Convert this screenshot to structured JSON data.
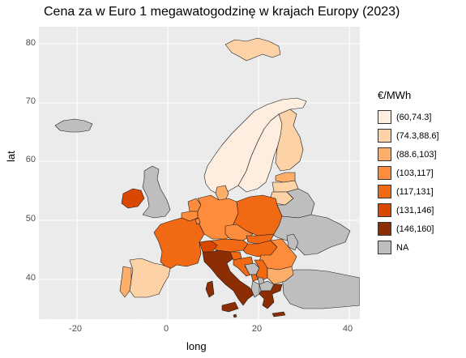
{
  "title": "Cena za w Euro 1 megawatogodzinę w krajach Europy (2023)",
  "xlabel": "long",
  "ylabel": "lat",
  "x_ticks": [
    "-20",
    "0",
    "20",
    "40"
  ],
  "y_ticks": [
    "80",
    "70",
    "60",
    "50",
    "40"
  ],
  "legend": {
    "title": "€/MWh",
    "items": [
      {
        "label": "(60,74.3]",
        "color": "#fdeee0"
      },
      {
        "label": "(74.3,88.6]",
        "color": "#fdd2a6"
      },
      {
        "label": "(88.6,103]",
        "color": "#fdae6b"
      },
      {
        "label": "(103,117]",
        "color": "#fd8d3c"
      },
      {
        "label": "(117,131]",
        "color": "#f16913"
      },
      {
        "label": "(131,146]",
        "color": "#d94801"
      },
      {
        "label": "(146,160]",
        "color": "#8c2d04"
      },
      {
        "label": "NA",
        "color": "#bebebe"
      }
    ]
  },
  "chart_data": {
    "type": "choropleth",
    "title": "Cena za w Euro 1 megawatogodzinę w krajach Europy (2023)",
    "xlabel": "long",
    "ylabel": "lat",
    "xlim": [
      -28,
      43
    ],
    "ylim": [
      33.5,
      83
    ],
    "legend_title": "€/MWh",
    "legend_position": "right",
    "grid": true,
    "countries": [
      {
        "name": "Norway",
        "bin": "(60,74.3]"
      },
      {
        "name": "Sweden",
        "bin": "(60,74.3]"
      },
      {
        "name": "Svalbard",
        "bin": "(74.3,88.6]"
      },
      {
        "name": "Finland",
        "bin": "(74.3,88.6]"
      },
      {
        "name": "Estonia",
        "bin": "(88.6,103]"
      },
      {
        "name": "Latvia",
        "bin": "(74.3,88.6]"
      },
      {
        "name": "Lithuania",
        "bin": "(74.3,88.6]"
      },
      {
        "name": "Spain",
        "bin": "(74.3,88.6]"
      },
      {
        "name": "Portugal",
        "bin": "(74.3,88.6]"
      },
      {
        "name": "Denmark",
        "bin": "(88.6,103]"
      },
      {
        "name": "Bulgaria",
        "bin": "(88.6,103]"
      },
      {
        "name": "Germany",
        "bin": "(103,117]"
      },
      {
        "name": "Netherlands",
        "bin": "(103,117]"
      },
      {
        "name": "Belgium",
        "bin": "(103,117]"
      },
      {
        "name": "Luxembourg",
        "bin": "(103,117]"
      },
      {
        "name": "Czechia",
        "bin": "(103,117]"
      },
      {
        "name": "Romania",
        "bin": "(103,117]"
      },
      {
        "name": "Poland",
        "bin": "(117,131]"
      },
      {
        "name": "France",
        "bin": "(117,131]"
      },
      {
        "name": "Austria",
        "bin": "(117,131]"
      },
      {
        "name": "Slovakia",
        "bin": "(117,131]"
      },
      {
        "name": "Hungary",
        "bin": "(117,131]"
      },
      {
        "name": "Slovenia",
        "bin": "(117,131]"
      },
      {
        "name": "Croatia",
        "bin": "(117,131]"
      },
      {
        "name": "Serbia",
        "bin": "(117,131]"
      },
      {
        "name": "Montenegro",
        "bin": "(117,131]"
      },
      {
        "name": "Ireland",
        "bin": "(131,146]"
      },
      {
        "name": "Switzerland",
        "bin": "(131,146]"
      },
      {
        "name": "Italy",
        "bin": "(146,160]"
      },
      {
        "name": "Greece",
        "bin": "(146,160]"
      },
      {
        "name": "Malta",
        "bin": "(146,160]"
      },
      {
        "name": "Iceland",
        "bin": "NA"
      },
      {
        "name": "United Kingdom",
        "bin": "NA"
      },
      {
        "name": "Belarus",
        "bin": "NA"
      },
      {
        "name": "Ukraine",
        "bin": "NA"
      },
      {
        "name": "Moldova",
        "bin": "NA"
      },
      {
        "name": "Bosnia and Herzegovina",
        "bin": "NA"
      },
      {
        "name": "North Macedonia",
        "bin": "NA"
      },
      {
        "name": "Albania",
        "bin": "NA"
      },
      {
        "name": "Kosovo",
        "bin": "NA"
      },
      {
        "name": "Turkey",
        "bin": "NA"
      }
    ]
  }
}
